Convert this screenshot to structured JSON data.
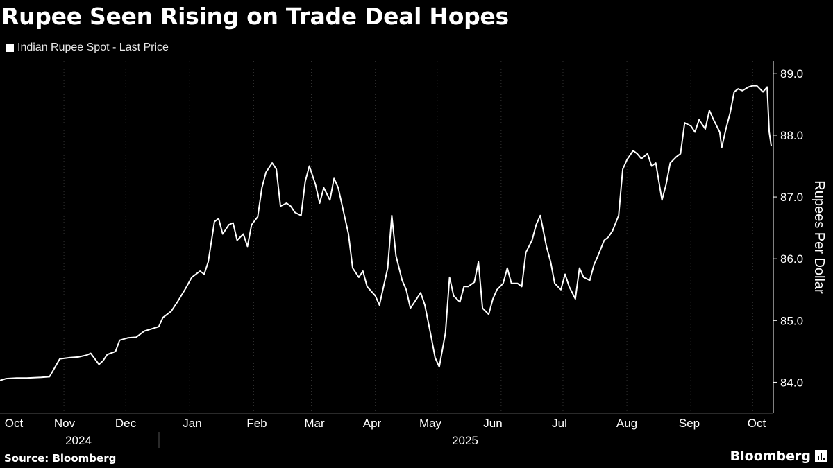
{
  "header": {
    "title": "Rupee Seen Rising on Trade Deal Hopes",
    "legend_label": "Indian Rupee Spot - Last Price"
  },
  "footer": {
    "source": "Source: Bloomberg",
    "brand": "Bloomberg"
  },
  "colors": {
    "background": "#000000",
    "line": "#ffffff",
    "gridline": "#333333",
    "axis": "#ffffff"
  },
  "chart_data": {
    "type": "line",
    "title": "Rupee Seen Rising on Trade Deal Hopes",
    "ylabel": "Rupees Per Dollar",
    "xlabel": "",
    "ylim": [
      83.5,
      89.2
    ],
    "yticks": [
      "84.0",
      "85.0",
      "86.0",
      "87.0",
      "88.0",
      "89.0"
    ],
    "grid": false,
    "legend_placement": "top-left",
    "x_month_labels": [
      "Oct",
      "Nov",
      "Dec",
      "Jan",
      "Feb",
      "Mar",
      "Apr",
      "May",
      "Jun",
      "Jul",
      "Aug",
      "Sep",
      "Oct"
    ],
    "x_year_labels": [
      "2024",
      "2025"
    ],
    "series": [
      {
        "name": "Indian Rupee Spot - Last Price",
        "points": [
          [
            "2024-10-01",
            84.03
          ],
          [
            "2024-10-04",
            84.06
          ],
          [
            "2024-10-09",
            84.07
          ],
          [
            "2024-10-14",
            84.07
          ],
          [
            "2024-10-21",
            84.08
          ],
          [
            "2024-10-25",
            84.09
          ],
          [
            "2024-10-30",
            84.38
          ],
          [
            "2024-11-04",
            84.4
          ],
          [
            "2024-11-08",
            84.41
          ],
          [
            "2024-11-12",
            84.44
          ],
          [
            "2024-11-14",
            84.47
          ],
          [
            "2024-11-18",
            84.29
          ],
          [
            "2024-11-20",
            84.35
          ],
          [
            "2024-11-22",
            84.45
          ],
          [
            "2024-11-26",
            84.5
          ],
          [
            "2024-11-28",
            84.68
          ],
          [
            "2024-12-02",
            84.72
          ],
          [
            "2024-12-06",
            84.73
          ],
          [
            "2024-12-10",
            84.83
          ],
          [
            "2024-12-13",
            84.86
          ],
          [
            "2024-12-17",
            84.9
          ],
          [
            "2024-12-19",
            85.05
          ],
          [
            "2024-12-23",
            85.15
          ],
          [
            "2024-12-26",
            85.3
          ],
          [
            "2024-12-30",
            85.52
          ],
          [
            "2025-01-02",
            85.7
          ],
          [
            "2025-01-06",
            85.8
          ],
          [
            "2025-01-08",
            85.75
          ],
          [
            "2025-01-10",
            85.95
          ],
          [
            "2025-01-13",
            86.6
          ],
          [
            "2025-01-15",
            86.65
          ],
          [
            "2025-01-17",
            86.4
          ],
          [
            "2025-01-20",
            86.55
          ],
          [
            "2025-01-22",
            86.58
          ],
          [
            "2025-01-24",
            86.3
          ],
          [
            "2025-01-27",
            86.4
          ],
          [
            "2025-01-29",
            86.2
          ],
          [
            "2025-01-31",
            86.55
          ],
          [
            "2025-02-03",
            86.68
          ],
          [
            "2025-02-05",
            87.15
          ],
          [
            "2025-02-07",
            87.4
          ],
          [
            "2025-02-10",
            87.55
          ],
          [
            "2025-02-12",
            87.45
          ],
          [
            "2025-02-14",
            86.85
          ],
          [
            "2025-02-17",
            86.9
          ],
          [
            "2025-02-19",
            86.85
          ],
          [
            "2025-02-21",
            86.75
          ],
          [
            "2025-02-24",
            86.7
          ],
          [
            "2025-02-26",
            87.25
          ],
          [
            "2025-02-28",
            87.5
          ],
          [
            "2025-03-03",
            87.2
          ],
          [
            "2025-03-05",
            86.9
          ],
          [
            "2025-03-07",
            87.15
          ],
          [
            "2025-03-10",
            86.95
          ],
          [
            "2025-03-12",
            87.3
          ],
          [
            "2025-03-14",
            87.15
          ],
          [
            "2025-03-17",
            86.7
          ],
          [
            "2025-03-19",
            86.4
          ],
          [
            "2025-03-21",
            85.85
          ],
          [
            "2025-03-24",
            85.7
          ],
          [
            "2025-03-26",
            85.8
          ],
          [
            "2025-03-28",
            85.55
          ],
          [
            "2025-04-01",
            85.4
          ],
          [
            "2025-04-03",
            85.25
          ],
          [
            "2025-04-07",
            85.85
          ],
          [
            "2025-04-09",
            86.7
          ],
          [
            "2025-04-11",
            86.05
          ],
          [
            "2025-04-14",
            85.65
          ],
          [
            "2025-04-16",
            85.5
          ],
          [
            "2025-04-18",
            85.2
          ],
          [
            "2025-04-21",
            85.35
          ],
          [
            "2025-04-23",
            85.45
          ],
          [
            "2025-04-25",
            85.25
          ],
          [
            "2025-04-28",
            84.75
          ],
          [
            "2025-04-30",
            84.4
          ],
          [
            "2025-05-02",
            84.25
          ],
          [
            "2025-05-05",
            84.8
          ],
          [
            "2025-05-07",
            85.7
          ],
          [
            "2025-05-09",
            85.4
          ],
          [
            "2025-05-12",
            85.3
          ],
          [
            "2025-05-14",
            85.55
          ],
          [
            "2025-05-16",
            85.55
          ],
          [
            "2025-05-19",
            85.62
          ],
          [
            "2025-05-21",
            85.95
          ],
          [
            "2025-05-23",
            85.2
          ],
          [
            "2025-05-26",
            85.1
          ],
          [
            "2025-05-28",
            85.35
          ],
          [
            "2025-05-30",
            85.5
          ],
          [
            "2025-06-02",
            85.6
          ],
          [
            "2025-06-04",
            85.85
          ],
          [
            "2025-06-06",
            85.6
          ],
          [
            "2025-06-09",
            85.6
          ],
          [
            "2025-06-11",
            85.55
          ],
          [
            "2025-06-13",
            86.1
          ],
          [
            "2025-06-16",
            86.3
          ],
          [
            "2025-06-18",
            86.55
          ],
          [
            "2025-06-20",
            86.7
          ],
          [
            "2025-06-23",
            86.2
          ],
          [
            "2025-06-25",
            85.95
          ],
          [
            "2025-06-27",
            85.6
          ],
          [
            "2025-06-30",
            85.5
          ],
          [
            "2025-07-02",
            85.75
          ],
          [
            "2025-07-04",
            85.55
          ],
          [
            "2025-07-07",
            85.35
          ],
          [
            "2025-07-09",
            85.85
          ],
          [
            "2025-07-11",
            85.7
          ],
          [
            "2025-07-14",
            85.65
          ],
          [
            "2025-07-16",
            85.9
          ],
          [
            "2025-07-18",
            86.05
          ],
          [
            "2025-07-21",
            86.3
          ],
          [
            "2025-07-23",
            86.35
          ],
          [
            "2025-07-25",
            86.45
          ],
          [
            "2025-07-28",
            86.7
          ],
          [
            "2025-07-30",
            87.45
          ],
          [
            "2025-08-01",
            87.6
          ],
          [
            "2025-08-04",
            87.75
          ],
          [
            "2025-08-06",
            87.7
          ],
          [
            "2025-08-08",
            87.62
          ],
          [
            "2025-08-11",
            87.7
          ],
          [
            "2025-08-13",
            87.5
          ],
          [
            "2025-08-15",
            87.55
          ],
          [
            "2025-08-18",
            86.95
          ],
          [
            "2025-08-20",
            87.2
          ],
          [
            "2025-08-22",
            87.55
          ],
          [
            "2025-08-25",
            87.65
          ],
          [
            "2025-08-27",
            87.7
          ],
          [
            "2025-08-29",
            88.2
          ],
          [
            "2025-09-01",
            88.15
          ],
          [
            "2025-09-03",
            88.05
          ],
          [
            "2025-09-05",
            88.25
          ],
          [
            "2025-09-08",
            88.1
          ],
          [
            "2025-09-10",
            88.4
          ],
          [
            "2025-09-12",
            88.25
          ],
          [
            "2025-09-15",
            88.05
          ],
          [
            "2025-09-16",
            87.8
          ],
          [
            "2025-09-18",
            88.1
          ],
          [
            "2025-09-20",
            88.35
          ],
          [
            "2025-09-22",
            88.7
          ],
          [
            "2025-09-24",
            88.75
          ],
          [
            "2025-09-26",
            88.72
          ],
          [
            "2025-09-29",
            88.78
          ],
          [
            "2025-10-01",
            88.8
          ],
          [
            "2025-10-03",
            88.8
          ],
          [
            "2025-10-06",
            88.7
          ],
          [
            "2025-10-08",
            88.78
          ],
          [
            "2025-10-09",
            88.05
          ],
          [
            "2025-10-10",
            87.83
          ]
        ]
      }
    ]
  }
}
